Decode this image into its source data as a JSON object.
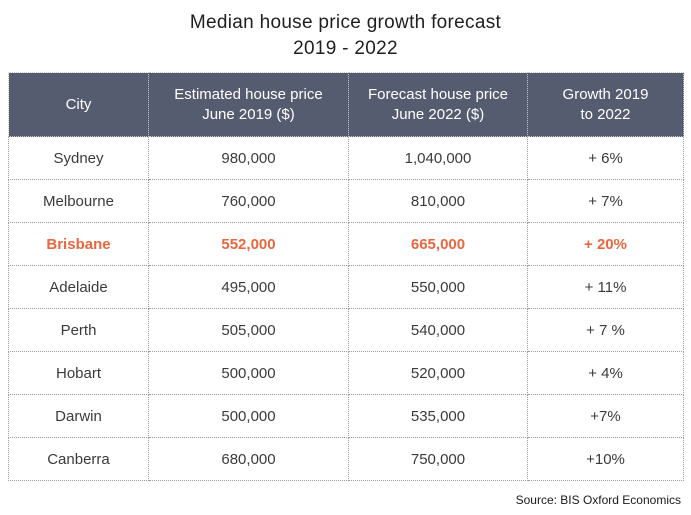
{
  "title": {
    "line1": "Median house price growth forecast",
    "line2": "2019 - 2022"
  },
  "header": {
    "col1": {
      "line1": "City",
      "line2": ""
    },
    "col2": {
      "line1": "Estimated house price",
      "line2": "June 2019 ($)"
    },
    "col3": {
      "line1": "Forecast house price",
      "line2": "June 2022 ($)"
    },
    "col4": {
      "line1": "Growth 2019",
      "line2": "to 2022"
    }
  },
  "chart_data": {
    "type": "table",
    "title": "Median house price growth forecast 2019 - 2022",
    "columns": [
      "City",
      "Estimated house price June 2019 ($)",
      "Forecast house price June 2022 ($)",
      "Growth 2019 to 2022"
    ],
    "rows": [
      [
        "Sydney",
        "980,000",
        "1,040,000",
        "+ 6%"
      ],
      [
        "Melbourne",
        "760,000",
        "810,000",
        "+ 7%"
      ],
      [
        "Brisbane",
        "552,000",
        "665,000",
        "+ 20%"
      ],
      [
        "Adelaide",
        "495,000",
        "550,000",
        "+ 11%"
      ],
      [
        "Perth",
        "505,000",
        "540,000",
        "+ 7 %"
      ],
      [
        "Hobart",
        "500,000",
        "520,000",
        "+ 4%"
      ],
      [
        "Darwin",
        "500,000",
        "535,000",
        "+7%"
      ],
      [
        "Canberra",
        "680,000",
        "750,000",
        "+10%"
      ]
    ],
    "highlight_city": "Brisbane",
    "values_numeric": {
      "price_2019": [
        980000,
        760000,
        552000,
        495000,
        505000,
        500000,
        500000,
        680000
      ],
      "price_2022": [
        1040000,
        810000,
        665000,
        550000,
        540000,
        520000,
        535000,
        750000
      ],
      "growth_pct": [
        6,
        7,
        20,
        11,
        7,
        4,
        7,
        10
      ]
    }
  },
  "source": "Source: BIS Oxford Economics",
  "colors": {
    "header_bg": "#565C70",
    "highlight": "#E8673F",
    "border": "#9A9A9A",
    "body_text": "#3B3B3B"
  }
}
